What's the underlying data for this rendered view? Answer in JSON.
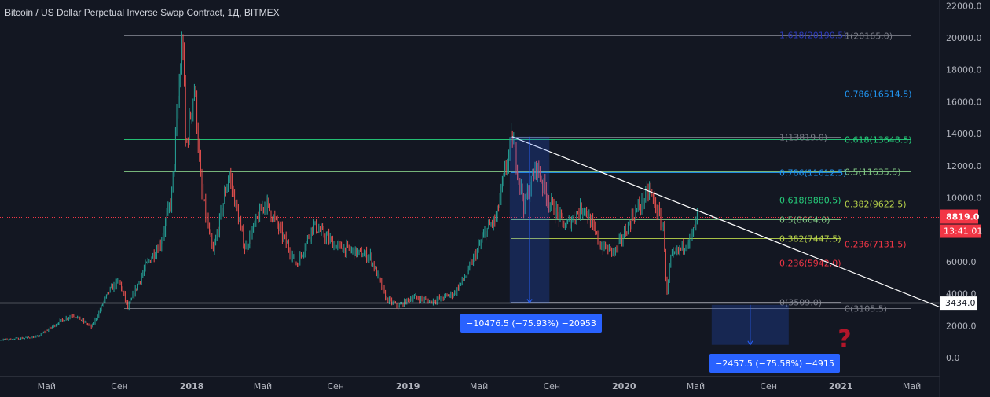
{
  "chart_data": {
    "type": "candlestick",
    "title": "Bitcoin / US Dollar Perpetual Inverse Swap Contract, 1Д, BITMEX",
    "ylim": [
      -1000,
      22500
    ],
    "y_ticks": [
      "22000.0",
      "20000.0",
      "18000.0",
      "16000.0",
      "14000.0",
      "12000.0",
      "10000.0",
      "6000.0",
      "4000.0",
      "2000.0",
      "0.0"
    ],
    "x_ticks": [
      "Май",
      "Сен",
      "2018",
      "Май",
      "Сен",
      "2019",
      "Май",
      "Сен",
      "2020",
      "Май",
      "Сен",
      "2021",
      "Май"
    ],
    "price_path": [
      {
        "d": "2017-01-01",
        "v": 1000
      },
      {
        "d": "2017-03-01",
        "v": 1150
      },
      {
        "d": "2017-04-15",
        "v": 1300
      },
      {
        "d": "2017-05-25",
        "v": 2300
      },
      {
        "d": "2017-06-15",
        "v": 2700
      },
      {
        "d": "2017-07-16",
        "v": 1900
      },
      {
        "d": "2017-08-15",
        "v": 4200
      },
      {
        "d": "2017-09-01",
        "v": 4800
      },
      {
        "d": "2017-09-15",
        "v": 3100
      },
      {
        "d": "2017-10-15",
        "v": 5700
      },
      {
        "d": "2017-11-10",
        "v": 7200
      },
      {
        "d": "2017-11-28",
        "v": 10000
      },
      {
        "d": "2017-12-10",
        "v": 16500
      },
      {
        "d": "2017-12-17",
        "v": 20165
      },
      {
        "d": "2017-12-22",
        "v": 13000
      },
      {
        "d": "2018-01-06",
        "v": 17000
      },
      {
        "d": "2018-01-17",
        "v": 10500
      },
      {
        "d": "2018-02-06",
        "v": 6500
      },
      {
        "d": "2018-03-05",
        "v": 11500
      },
      {
        "d": "2018-04-01",
        "v": 6800
      },
      {
        "d": "2018-05-05",
        "v": 9800
      },
      {
        "d": "2018-06-28",
        "v": 5800
      },
      {
        "d": "2018-07-25",
        "v": 8300
      },
      {
        "d": "2018-09-01",
        "v": 7000
      },
      {
        "d": "2018-10-30",
        "v": 6300
      },
      {
        "d": "2018-11-25",
        "v": 3700
      },
      {
        "d": "2018-12-15",
        "v": 3200
      },
      {
        "d": "2019-01-10",
        "v": 3800
      },
      {
        "d": "2019-02-08",
        "v": 3500
      },
      {
        "d": "2019-03-20",
        "v": 4000
      },
      {
        "d": "2019-04-10",
        "v": 5200
      },
      {
        "d": "2019-05-14",
        "v": 8000
      },
      {
        "d": "2019-05-30",
        "v": 8700
      },
      {
        "d": "2019-06-26",
        "v": 13819
      },
      {
        "d": "2019-07-16",
        "v": 9500
      },
      {
        "d": "2019-08-06",
        "v": 12000
      },
      {
        "d": "2019-08-28",
        "v": 9700
      },
      {
        "d": "2019-09-24",
        "v": 8200
      },
      {
        "d": "2019-10-25",
        "v": 9500
      },
      {
        "d": "2019-11-22",
        "v": 7000
      },
      {
        "d": "2019-12-17",
        "v": 6600
      },
      {
        "d": "2020-01-14",
        "v": 8700
      },
      {
        "d": "2020-02-13",
        "v": 10500
      },
      {
        "d": "2020-03-08",
        "v": 8000
      },
      {
        "d": "2020-03-13",
        "v": 3800
      },
      {
        "d": "2020-03-20",
        "v": 6200
      },
      {
        "d": "2020-04-05",
        "v": 6800
      },
      {
        "d": "2020-04-25",
        "v": 7600
      },
      {
        "d": "2020-05-04",
        "v": 8819
      }
    ],
    "horizontal_levels": [
      {
        "price": 20165,
        "color": "#787b86",
        "label": "1(20165.0)"
      },
      {
        "price": 20190.5,
        "color": "#2b39b8",
        "label": "1.618(20190.5)",
        "label_color": "#2b39b8"
      },
      {
        "price": 16514.5,
        "color": "#2196f3",
        "label": "0.786(16514.5)"
      },
      {
        "price": 13648.5,
        "color": "#26d07c",
        "label": "0.618(13648.5)"
      },
      {
        "price": 13819,
        "color": "#787b86",
        "label": "1(13819.0)"
      },
      {
        "price": 11635.5,
        "color": "#81c784",
        "label": "0.5(11635.5)"
      },
      {
        "price": 11612.5,
        "color": "#2196f3",
        "label": "0.786(11612.5)"
      },
      {
        "price": 9880.5,
        "color": "#26d07c",
        "label": "0.618(9880.5)"
      },
      {
        "price": 9622.5,
        "color": "#b8d34a",
        "label": "0.382(9622.5)"
      },
      {
        "price": 8664,
        "color": "#81c784",
        "label": "0.5(8664.0)"
      },
      {
        "price": 7447.5,
        "color": "#b8d34a",
        "label": "0.382(7447.5)"
      },
      {
        "price": 7131.5,
        "color": "#f23645",
        "label": "0.236(7131.5)"
      },
      {
        "price": 5942,
        "color": "#f23645",
        "label": "0.236(5942.0)"
      },
      {
        "price": 3509,
        "color": "#787b86",
        "label": "0(3509.0)"
      },
      {
        "price": 3105.5,
        "color": "#787b86",
        "label": "0(3105.5)"
      }
    ],
    "trendline": {
      "from": {
        "d": "2019-06-26",
        "v": 13819
      },
      "to": {
        "d": "2021-05-15",
        "v": 3650
      }
    },
    "support_line": {
      "price": 3434,
      "label": "3434.0"
    },
    "last_price": {
      "price": 8819,
      "label": "8819.0",
      "countdown": "13:41:01",
      "color": "#f23645"
    },
    "measures": [
      {
        "from": {
          "d": "2019-06-22",
          "v": 13819
        },
        "to": {
          "d": "2019-08-28",
          "v": 3420
        },
        "label": "−10476.5 (−75.93%) −20953"
      },
      {
        "from": {
          "d": "2020-05-28",
          "v": 3300
        },
        "to": {
          "d": "2020-10-05",
          "v": 800
        },
        "label": "−2457.5 (−75.58%) −4915"
      }
    ],
    "question_mark": "?"
  }
}
